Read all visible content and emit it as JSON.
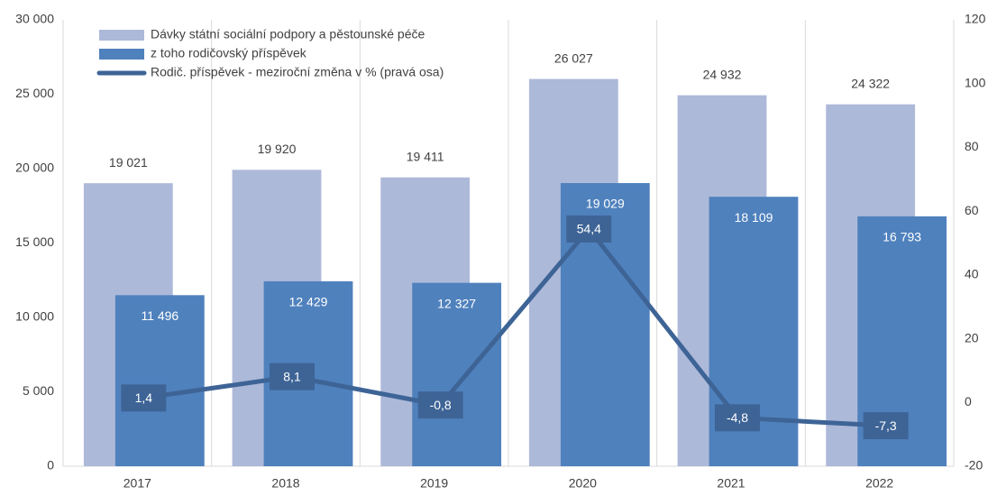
{
  "chart_data": {
    "type": "bar-line",
    "categories": [
      "2017",
      "2018",
      "2019",
      "2020",
      "2021",
      "2022"
    ],
    "series": [
      {
        "name": "Dávky státní sociální podpory a pěstounské péče",
        "color": "#adb9d9",
        "type": "bar",
        "values": [
          19021,
          19920,
          19411,
          26027,
          24932,
          24322
        ],
        "value_labels": [
          "19 021",
          "19 920",
          "19 411",
          "26 027",
          "24 932",
          "24 322"
        ]
      },
      {
        "name": "z toho rodičovský příspěvek",
        "color": "#4f81bd",
        "type": "bar",
        "values": [
          11496,
          12429,
          12327,
          19029,
          18109,
          16793
        ],
        "value_labels": [
          "11 496",
          "12 429",
          "12 327",
          "19 029",
          "18 109",
          "16 793"
        ]
      },
      {
        "name": "Rodič. příspěvek - meziroční změna v % (pravá osa)",
        "color": "#3e6496",
        "type": "line",
        "axis": "y2",
        "values": [
          1.4,
          8.1,
          -0.8,
          54.4,
          -4.8,
          -7.3
        ],
        "value_labels": [
          "1,4",
          "8,1",
          "-0,8",
          "54,4",
          "-4,8",
          "-7,3"
        ]
      }
    ],
    "ylim": [
      0,
      30000
    ],
    "yticks": [
      0,
      {
        "value": 5000,
        "label": "5 000"
      },
      {
        "value": 10000,
        "label": "10 000"
      },
      {
        "value": 15000,
        "label": "15 000"
      },
      {
        "value": 20000,
        "label": "20 000"
      },
      {
        "value": 25000,
        "label": "25 000"
      },
      {
        "value": 30000,
        "label": "30 000"
      }
    ],
    "y2lim": [
      -20,
      120
    ],
    "y2ticks": [
      -20,
      0,
      20,
      40,
      60,
      80,
      100,
      120
    ],
    "grid": "vertical",
    "legend": "top-left"
  }
}
